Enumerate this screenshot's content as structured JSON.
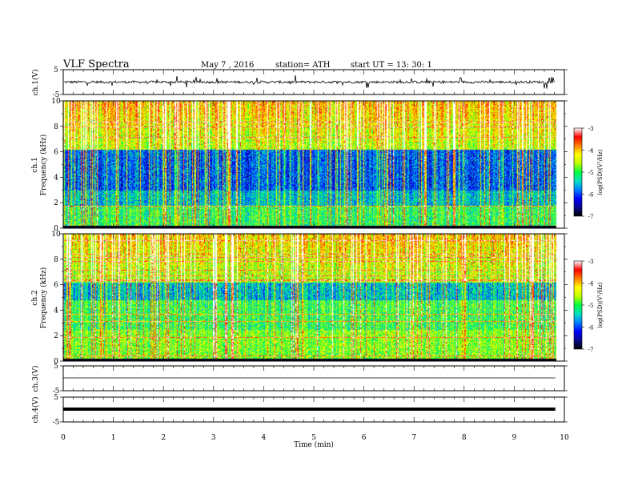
{
  "header": {
    "title": "VLF  Spectra",
    "date": "May 7  , 2016",
    "station": "station= ATH",
    "start_ut": "start  UT  =   13: 30: 1"
  },
  "colors": {
    "waveform": "#000000",
    "frame": "#000000",
    "colormap": [
      "#000000",
      "#0a0a8c",
      "#0000ff",
      "#0080ff",
      "#00e0c0",
      "#00ff40",
      "#c0ff00",
      "#ffff00",
      "#ff8000",
      "#ff0000",
      "#ffffff"
    ]
  },
  "chart_data": [
    {
      "type": "line",
      "name": "ch1-waveform",
      "ylabel": "ch.1(V)",
      "ylim": [
        -5,
        5
      ],
      "yticks": [
        "5",
        "-5"
      ],
      "x_range": [
        0,
        9.82
      ],
      "baseline": 0,
      "noise_amplitude": 0.5
    },
    {
      "type": "heatmap",
      "name": "ch1-spectrogram",
      "ylabel_channel": "ch.1",
      "ylabel": "Frequency  (kHz)",
      "ylim": [
        0,
        10
      ],
      "yticks": [
        "0",
        "2",
        "4",
        "6",
        "8",
        "10"
      ],
      "x_range": [
        0,
        9.82
      ],
      "colorbar": {
        "label": "log(PSD)(V²/Hz)",
        "range": [
          -7,
          -3
        ],
        "ticks": [
          "-3",
          "-4",
          "-5",
          "-6",
          "-7"
        ]
      }
    },
    {
      "type": "heatmap",
      "name": "ch2-spectrogram",
      "ylabel_channel": "ch.2",
      "ylabel": "Frequency  (kHz)",
      "ylim": [
        0,
        10
      ],
      "yticks": [
        "0",
        "2",
        "4",
        "6",
        "8",
        "10"
      ],
      "x_range": [
        0,
        9.82
      ],
      "colorbar": {
        "label": "log(PSD)(V²/Hz)",
        "range": [
          -7,
          -3
        ],
        "ticks": [
          "-3",
          "-4",
          "-5",
          "-6",
          "-7"
        ]
      }
    },
    {
      "type": "line",
      "name": "ch3-waveform",
      "ylabel": "ch.3(V)",
      "ylim": [
        -5,
        5
      ],
      "yticks": [
        "5",
        "-5"
      ],
      "x_range": [
        0,
        9.82
      ],
      "baseline": 0
    },
    {
      "type": "line",
      "name": "ch4-waveform",
      "ylabel": "ch.4(V)",
      "ylim": [
        -5,
        5
      ],
      "yticks": [
        "5",
        "-5"
      ],
      "x_range": [
        0,
        9.82
      ],
      "baseline": 0
    }
  ],
  "x_axis": {
    "label": "Time  (min)",
    "range": [
      0,
      10
    ],
    "ticks": [
      "0",
      "1",
      "2",
      "3",
      "4",
      "5",
      "6",
      "7",
      "8",
      "9",
      "10"
    ]
  }
}
